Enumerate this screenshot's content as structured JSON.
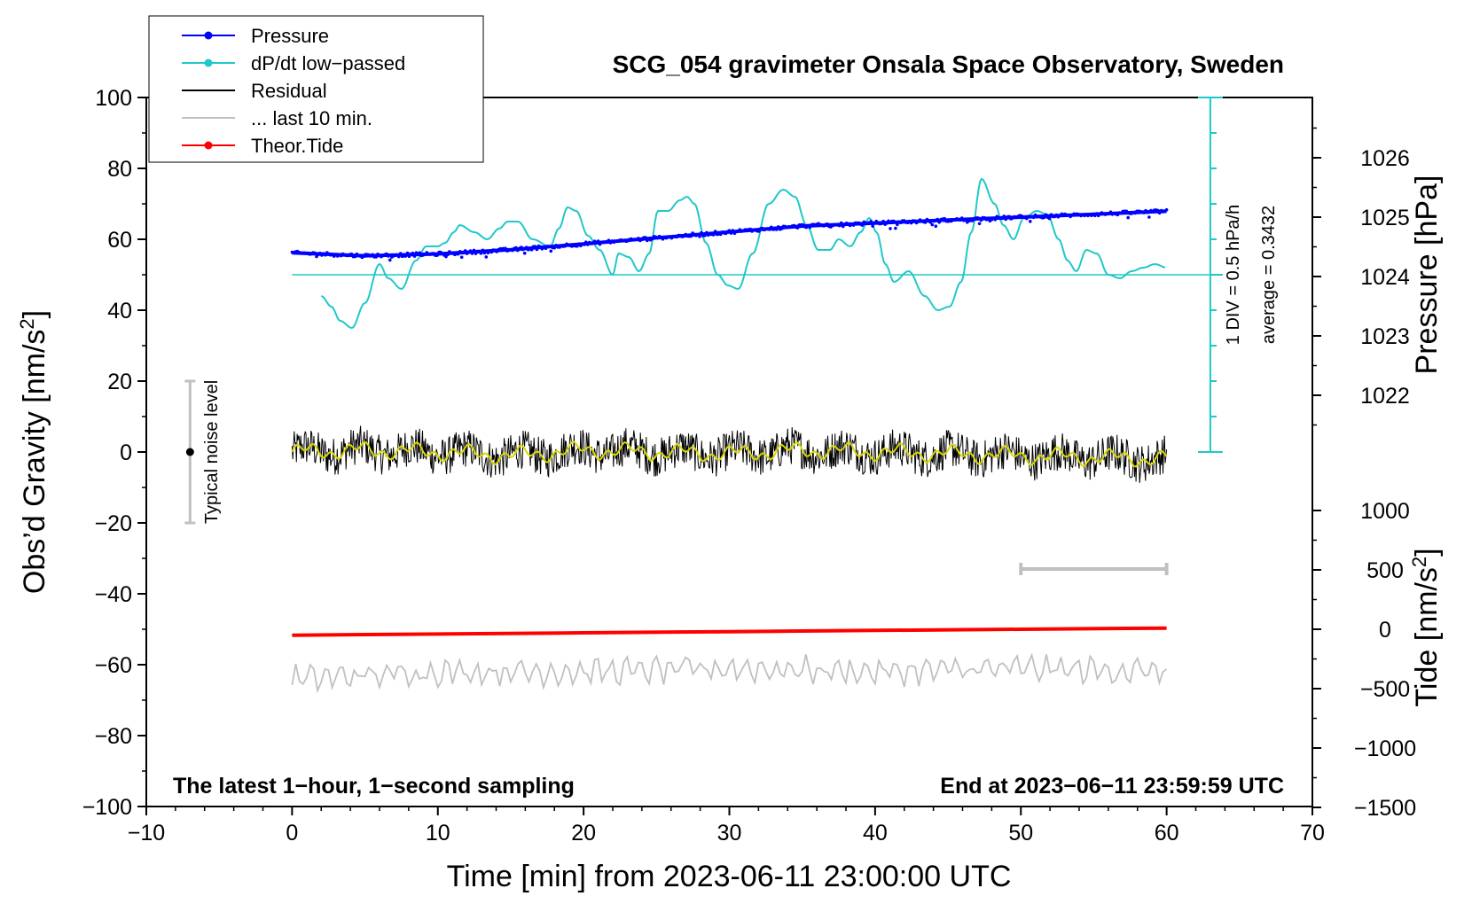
{
  "chart_data": {
    "type": "line",
    "title": "SCG_054 gravimeter Onsala Space Observatory, Sweden",
    "xlabel": "Time [min] from 2023-06-11 23:00:00 UTC",
    "ylabel_left": "Obs'd Gravity [nm/s2]",
    "ylabel_left_base": "Obs’d Gravity [nm/s",
    "ylabel_left_sup": "2",
    "ylabel_left_tail": "]",
    "ylabel_right_top": "Pressure [hPa]",
    "ylabel_right_bottom_base": "Tide [nm/s",
    "ylabel_right_bottom_sup": "2",
    "ylabel_right_bottom_tail": "]",
    "xlim": [
      -10,
      70
    ],
    "ylim_left": [
      -100,
      100
    ],
    "x_ticks": [
      -10,
      0,
      10,
      20,
      30,
      40,
      50,
      60,
      70
    ],
    "x_tick_labels": [
      "−10",
      "0",
      "10",
      "20",
      "30",
      "40",
      "50",
      "60",
      "70"
    ],
    "y_left_ticks": [
      100,
      80,
      60,
      40,
      20,
      0,
      -20,
      -40,
      -60,
      -80,
      -100
    ],
    "y_left_tick_labels": [
      "100",
      "80",
      "60",
      "40",
      "20",
      "0",
      "−20",
      "−40",
      "−60",
      "−80",
      "−100"
    ],
    "pressure_axis": {
      "ticks": [
        1022,
        1023,
        1024,
        1025,
        1026
      ],
      "tick_labels": [
        "1022",
        "1023",
        "1024",
        "1025",
        "1026"
      ],
      "unit": "hPa"
    },
    "tide_axis": {
      "ticks": [
        1000,
        500,
        0,
        -500,
        -1000,
        -1500
      ],
      "tick_labels": [
        "1000",
        "500",
        "0",
        "−500",
        "−1000",
        "−1500"
      ],
      "unit": "nm/s2"
    },
    "legend": [
      {
        "label": "Pressure",
        "color": "#0000ff",
        "marker": true
      },
      {
        "label": "dP/dt low−passed",
        "color": "#20c8c8",
        "marker": true
      },
      {
        "label": "Residual",
        "color": "#000000",
        "marker": false
      },
      {
        "label": "... last 10 min.",
        "color": "#c0c0c0",
        "marker": false
      },
      {
        "label": "Theor.Tide",
        "color": "#ff0000",
        "marker": true
      }
    ],
    "series": [
      {
        "name": "Pressure",
        "axis": "pressure_hPa",
        "color": "#0000ff",
        "x": [
          0,
          5,
          10,
          15,
          20,
          25,
          30,
          35,
          40,
          45,
          50,
          55,
          60
        ],
        "values": [
          1024.4,
          1024.35,
          1024.38,
          1024.45,
          1024.55,
          1024.65,
          1024.75,
          1024.85,
          1024.9,
          1024.95,
          1025.0,
          1025.05,
          1025.1
        ]
      },
      {
        "name": "dP/dt low−passed",
        "axis": "gravity_equiv",
        "color": "#20c8c8",
        "x": [
          2,
          2.7,
          3.3,
          4.1,
          5,
          6,
          6.6,
          7.5,
          8.5,
          9.2,
          10,
          10.5,
          11.1,
          11.5,
          12.5,
          13.4,
          14.2,
          14.8,
          15.5,
          16.5,
          17.7,
          18.3,
          18.9,
          19.5,
          20.3,
          21.1,
          22,
          22.4,
          23.1,
          23.8,
          24.5,
          25.1,
          25.8,
          26.6,
          27.1,
          27.6,
          28.4,
          29.2,
          29.9,
          30.6,
          31.6,
          32.7,
          33.7,
          34.5,
          35.3,
          36.1,
          36.9,
          37.5,
          38.3,
          39,
          39.6,
          40.1,
          40.7,
          41.3,
          42.3,
          43.4,
          44.3,
          45.1,
          45.9,
          46.6,
          47.3,
          48.2,
          48.8,
          49.5,
          50.2,
          51.1,
          51.8,
          52.6,
          53.2,
          53.8,
          54.5,
          55.2,
          56,
          56.8,
          57.6,
          58.4,
          59.2,
          60
        ],
        "values": [
          44,
          41,
          37,
          35,
          42,
          53,
          49,
          46,
          54,
          58,
          58,
          59,
          62,
          64,
          62,
          60,
          63,
          65,
          65,
          60,
          58,
          63,
          69,
          68,
          61,
          57,
          50,
          56,
          55,
          51,
          56,
          68,
          68,
          71,
          72,
          70,
          59,
          50,
          47,
          46,
          56,
          70,
          74,
          72,
          64,
          57,
          57,
          60,
          58,
          62,
          66,
          62,
          53,
          48,
          51,
          44,
          40,
          41,
          48,
          62,
          77,
          70,
          64,
          60,
          66,
          68,
          67,
          60,
          54,
          51,
          57,
          56,
          50,
          49,
          51,
          52,
          53,
          52
        ]
      },
      {
        "name": "Residual",
        "axis": "gravity",
        "color": "#000000",
        "x": [
          0,
          5,
          10,
          15,
          20,
          25,
          30,
          35,
          40,
          45,
          50,
          55,
          60
        ],
        "values": [
          0,
          0.5,
          0,
          -1,
          0.5,
          0,
          -0.5,
          0.5,
          0,
          -0.5,
          -1,
          -1.5,
          -2
        ]
      },
      {
        "name": "... last 10 min.",
        "axis": "gravity",
        "color": "#c0c0c0",
        "x": [
          0,
          10,
          20,
          30,
          40,
          50,
          60
        ],
        "values": [
          -64,
          -62,
          -62,
          -61,
          -62,
          -61,
          -62
        ]
      },
      {
        "name": "Theor.Tide",
        "axis": "tide_nm_s2",
        "color": "#ff0000",
        "x": [
          0,
          10,
          20,
          30,
          40,
          50,
          60
        ],
        "values": [
          -50,
          -40,
          -30,
          -20,
          -10,
          0,
          10
        ]
      }
    ],
    "pressure_reference": {
      "gravity_level": 50,
      "hpa": 1024
    },
    "dpdt_scale_bar": {
      "label_scale": "1 DIV = 0.5 hPa/h",
      "label_avg": "average = 0.3432"
    },
    "noise_bar": {
      "label": "Typical noise level",
      "x": -7,
      "center": 0,
      "half_range": 20
    },
    "gray_scale_bar": {
      "x_start": 50,
      "x_end": 60,
      "gravity_level": -33
    },
    "annotation_left": "The latest 1−hour, 1−second sampling",
    "annotation_right": "End at 2023−06−11 23:59:59 UTC"
  }
}
